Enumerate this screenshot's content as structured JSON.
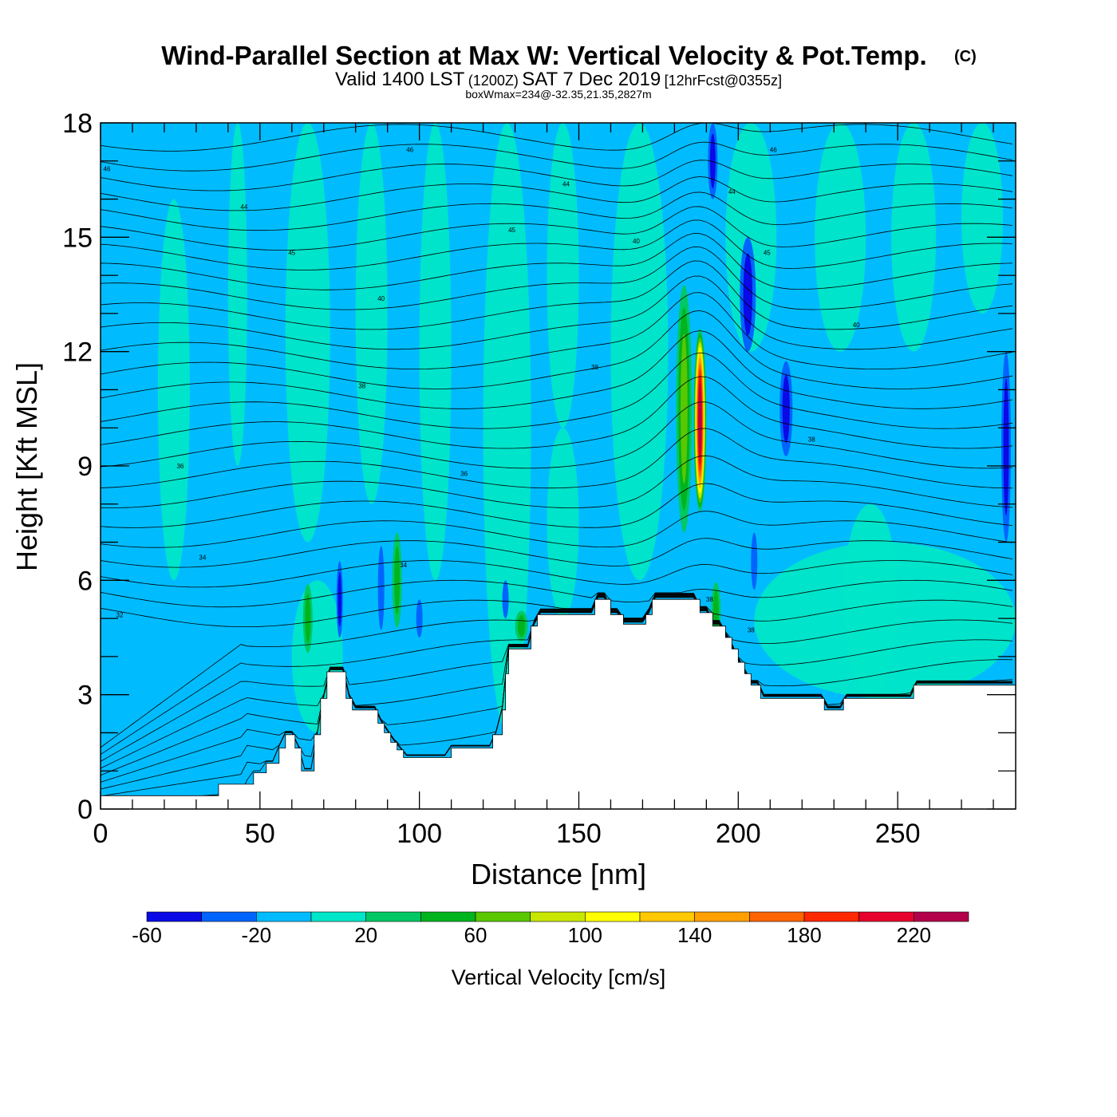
{
  "header": {
    "title": "Wind-Parallel Section at Max W: Vertical Velocity & Pot.Temp.",
    "copyright": "(C)",
    "subtitle_a": "Valid 1400 LST",
    "subtitle_b": "(1200Z)",
    "subtitle_c": "SAT 7 Dec 2019",
    "subtitle_d": "[12hrFcst@0355z]",
    "subtitle2": "boxWmax=234@-32.35,21.35,2827m"
  },
  "colors": {
    "palette": [
      "#0a0ae6",
      "#0064ff",
      "#00bcff",
      "#00e6c8",
      "#00c864",
      "#00b41e",
      "#5ac800",
      "#c8e600",
      "#ffff00",
      "#ffc800",
      "#ffa000",
      "#ff6400",
      "#ff2800",
      "#e6002d",
      "#b4004b"
    ],
    "terrain": "#ffffff",
    "contour": "#000000"
  },
  "chart_data": {
    "type": "heatmap",
    "xlabel": "Distance [nm]",
    "ylabel": "Height [Kft MSL]",
    "xlim": [
      0,
      287
    ],
    "ylim": [
      0,
      18
    ],
    "x_ticks": [
      "0",
      "50",
      "100",
      "150",
      "200",
      "250"
    ],
    "y_ticks": [
      "0",
      "3",
      "6",
      "9",
      "12",
      "15",
      "18"
    ],
    "colorbar": {
      "label": "Vertical Velocity [cm/s]",
      "min": -60,
      "max": 240,
      "step": 20,
      "tick_labels": [
        "-60",
        "-20",
        "20",
        "60",
        "100",
        "140",
        "180",
        "220"
      ]
    },
    "max_vertical_velocity": {
      "value": 234,
      "units": "cm/s",
      "x": 188,
      "y": 10.5
    },
    "terrain_profile": [
      [
        0,
        0.35
      ],
      [
        37,
        0.35
      ],
      [
        37,
        0.65
      ],
      [
        48,
        0.65
      ],
      [
        48,
        0.95
      ],
      [
        52,
        0.95
      ],
      [
        52,
        1.2
      ],
      [
        56,
        1.2
      ],
      [
        56,
        1.6
      ],
      [
        58,
        1.6
      ],
      [
        58,
        1.95
      ],
      [
        61,
        1.95
      ],
      [
        61,
        1.6
      ],
      [
        63,
        1.6
      ],
      [
        63,
        1.0
      ],
      [
        67,
        1.0
      ],
      [
        67,
        1.95
      ],
      [
        69,
        1.95
      ],
      [
        69,
        2.9
      ],
      [
        71,
        2.9
      ],
      [
        71,
        3.6
      ],
      [
        77,
        3.6
      ],
      [
        77,
        2.9
      ],
      [
        79,
        2.9
      ],
      [
        79,
        2.6
      ],
      [
        87,
        2.6
      ],
      [
        87,
        2.25
      ],
      [
        89,
        2.25
      ],
      [
        89,
        2.0
      ],
      [
        91,
        2.0
      ],
      [
        91,
        1.75
      ],
      [
        93,
        1.75
      ],
      [
        93,
        1.55
      ],
      [
        95,
        1.55
      ],
      [
        95,
        1.35
      ],
      [
        110,
        1.35
      ],
      [
        110,
        1.6
      ],
      [
        123,
        1.6
      ],
      [
        123,
        1.95
      ],
      [
        126,
        1.95
      ],
      [
        126,
        2.6
      ],
      [
        127,
        2.6
      ],
      [
        127,
        3.55
      ],
      [
        128,
        3.55
      ],
      [
        128,
        4.2
      ],
      [
        135,
        4.2
      ],
      [
        135,
        4.8
      ],
      [
        137,
        4.8
      ],
      [
        137,
        5.1
      ],
      [
        155,
        5.1
      ],
      [
        155,
        5.5
      ],
      [
        160,
        5.5
      ],
      [
        160,
        5.1
      ],
      [
        164,
        5.1
      ],
      [
        164,
        4.85
      ],
      [
        171,
        4.85
      ],
      [
        171,
        5.1
      ],
      [
        173,
        5.1
      ],
      [
        173,
        5.5
      ],
      [
        188,
        5.5
      ],
      [
        188,
        5.15
      ],
      [
        192,
        5.15
      ],
      [
        192,
        4.8
      ],
      [
        196,
        4.8
      ],
      [
        196,
        4.5
      ],
      [
        198,
        4.5
      ],
      [
        198,
        4.2
      ],
      [
        200,
        4.2
      ],
      [
        200,
        3.85
      ],
      [
        202,
        3.85
      ],
      [
        202,
        3.55
      ],
      [
        204,
        3.55
      ],
      [
        204,
        3.25
      ],
      [
        207,
        3.25
      ],
      [
        207,
        2.9
      ],
      [
        227,
        2.9
      ],
      [
        227,
        2.6
      ],
      [
        233,
        2.6
      ],
      [
        233,
        2.9
      ],
      [
        255,
        2.9
      ],
      [
        255,
        3.25
      ],
      [
        287,
        3.25
      ]
    ],
    "vertical_velocity_features": [
      {
        "x": 188,
        "y": 10.2,
        "peak": 234,
        "width": 4,
        "height": 4.8
      },
      {
        "x": 183,
        "y": 10.5,
        "peak": 60,
        "width": 5,
        "height": 6.5
      },
      {
        "x": 65,
        "y": 5.0,
        "peak": 40,
        "width": 3,
        "height": 1.8
      },
      {
        "x": 93,
        "y": 6.0,
        "peak": 40,
        "width": 3,
        "height": 2.5
      },
      {
        "x": 132,
        "y": 4.8,
        "peak": 50,
        "width": 4,
        "height": 0.8
      },
      {
        "x": 193,
        "y": 5.2,
        "peak": 40,
        "width": 3,
        "height": 1.5
      },
      {
        "x": 203,
        "y": 13.5,
        "peak": -40,
        "width": 5,
        "height": 3.0
      },
      {
        "x": 192,
        "y": 17.0,
        "peak": -45,
        "width": 3,
        "height": 2.0
      },
      {
        "x": 215,
        "y": 10.5,
        "peak": -40,
        "width": 4,
        "height": 2.5
      },
      {
        "x": 284,
        "y": 9.5,
        "peak": -40,
        "width": 3,
        "height": 5.0
      },
      {
        "x": 75,
        "y": 5.5,
        "peak": -40,
        "width": 2,
        "height": 2.0
      },
      {
        "x": 88,
        "y": 5.8,
        "peak": -30,
        "width": 2,
        "height": 2.2
      },
      {
        "x": 100,
        "y": 5.0,
        "peak": -25,
        "width": 2,
        "height": 1.0
      },
      {
        "x": 127,
        "y": 5.5,
        "peak": -25,
        "width": 2,
        "height": 1.0
      },
      {
        "x": 205,
        "y": 6.5,
        "peak": -25,
        "width": 2,
        "height": 1.5
      }
    ],
    "potential_temperature_labels": [
      {
        "x": 2,
        "y": 16.8,
        "text": "46"
      },
      {
        "x": 97,
        "y": 17.3,
        "text": "46"
      },
      {
        "x": 211,
        "y": 17.3,
        "text": "46"
      },
      {
        "x": 146,
        "y": 16.4,
        "text": "44"
      },
      {
        "x": 45,
        "y": 15.8,
        "text": "44"
      },
      {
        "x": 198,
        "y": 16.2,
        "text": "44"
      },
      {
        "x": 129,
        "y": 15.2,
        "text": "45"
      },
      {
        "x": 60,
        "y": 14.6,
        "text": "45"
      },
      {
        "x": 209,
        "y": 14.6,
        "text": "45"
      },
      {
        "x": 168,
        "y": 14.9,
        "text": "40"
      },
      {
        "x": 88,
        "y": 13.4,
        "text": "40"
      },
      {
        "x": 237,
        "y": 12.7,
        "text": "40"
      },
      {
        "x": 155,
        "y": 11.6,
        "text": "38"
      },
      {
        "x": 82,
        "y": 11.1,
        "text": "38"
      },
      {
        "x": 223,
        "y": 9.7,
        "text": "38"
      },
      {
        "x": 25,
        "y": 9.0,
        "text": "36"
      },
      {
        "x": 114,
        "y": 8.8,
        "text": "36"
      },
      {
        "x": 32,
        "y": 6.6,
        "text": "34"
      },
      {
        "x": 95,
        "y": 6.4,
        "text": "34"
      },
      {
        "x": 6,
        "y": 5.1,
        "text": "32"
      },
      {
        "x": 191,
        "y": 5.5,
        "text": "38"
      },
      {
        "x": 204,
        "y": 4.7,
        "text": "38"
      }
    ]
  }
}
